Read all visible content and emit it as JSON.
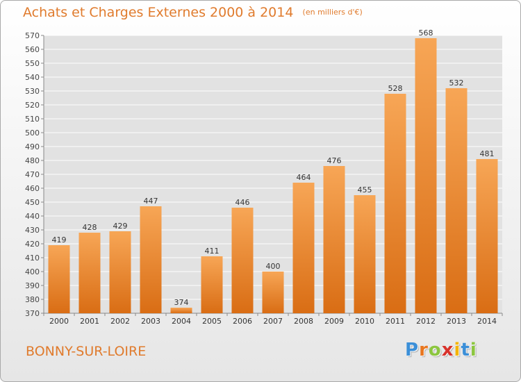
{
  "chart_data": {
    "type": "bar",
    "title": "Achats et Charges Externes 2000 à 2014",
    "subtitle": "(en milliers d'€)",
    "categories": [
      "2000",
      "2001",
      "2002",
      "2003",
      "2004",
      "2005",
      "2006",
      "2007",
      "2008",
      "2009",
      "2010",
      "2011",
      "2012",
      "2013",
      "2014"
    ],
    "values": [
      419,
      428,
      429,
      447,
      374,
      411,
      446,
      400,
      464,
      476,
      455,
      528,
      568,
      532,
      481
    ],
    "ylim": [
      370,
      570
    ],
    "ytick_step": 10,
    "grid": true,
    "bar_color_top": "#f7a656",
    "bar_color_bottom": "#d96d14",
    "grid_color": "#ffffff"
  },
  "footer": {
    "city": "BONNY-SUR-LOIRE",
    "logo_letters": [
      "P",
      "r",
      "o",
      "x",
      "i",
      "t",
      "i"
    ],
    "logo_colors": [
      "#3b8fd8",
      "#e8761f",
      "#8cc63f",
      "#d8322b",
      "#f4b400",
      "#3b8fd8",
      "#8cc63f"
    ]
  }
}
